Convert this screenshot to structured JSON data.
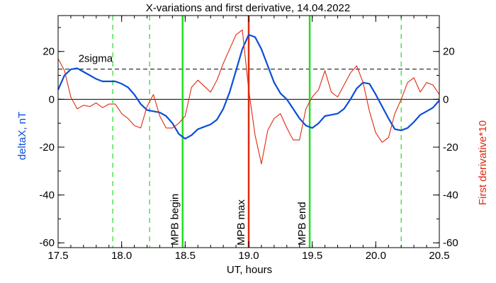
{
  "chart_data": {
    "type": "line",
    "title": "X-variations and first derivative, 14.04.2022",
    "xlabel": "UT, hours",
    "ylabel_left": "deltaX, nT",
    "ylabel_right": "First derivative*10",
    "xlim": [
      17.5,
      20.5
    ],
    "ylim": [
      -62,
      35
    ],
    "x_ticks": [
      17.5,
      18.0,
      18.5,
      19.0,
      19.5,
      20.0,
      20.5
    ],
    "x_tick_labels": [
      "17.5",
      "18.0",
      "18.5",
      "19.0",
      "19.5",
      "20.0",
      "20.5"
    ],
    "y_ticks": [
      20,
      0,
      -20,
      -40,
      -60
    ],
    "y_tick_labels": [
      "20",
      "0",
      "-20",
      "-40",
      "-60"
    ],
    "grid": false,
    "colors": {
      "deltaX": "#0a4ed8",
      "derivative": "#dd2a10",
      "mpb_border": "#22dd22",
      "mpb_max": "#dd2a10",
      "axis": "#000000"
    },
    "series": [
      {
        "id": "deltaX",
        "x": [
          17.5,
          17.55,
          17.6,
          17.65,
          17.7,
          17.75,
          17.8,
          17.85,
          17.9,
          17.95,
          18.0,
          18.05,
          18.1,
          18.15,
          18.2,
          18.25,
          18.3,
          18.35,
          18.4,
          18.45,
          18.5,
          18.55,
          18.6,
          18.65,
          18.7,
          18.75,
          18.8,
          18.85,
          18.9,
          18.95,
          19.0,
          19.05,
          19.1,
          19.15,
          19.2,
          19.25,
          19.3,
          19.35,
          19.4,
          19.45,
          19.5,
          19.55,
          19.6,
          19.65,
          19.7,
          19.75,
          19.8,
          19.85,
          19.9,
          19.95,
          20.0,
          20.05,
          20.1,
          20.15,
          20.2,
          20.25,
          20.3,
          20.35,
          20.4,
          20.45,
          20.5
        ],
        "values": [
          4,
          10,
          12.5,
          13,
          11.5,
          10,
          8.5,
          7.5,
          7.5,
          7.5,
          6.5,
          5,
          2,
          -2,
          -4.5,
          -5,
          -5.5,
          -7,
          -10,
          -14.5,
          -16.5,
          -15,
          -12.5,
          -11.5,
          -10.5,
          -8.5,
          -4,
          3,
          12,
          21,
          27,
          26,
          21,
          14,
          7,
          2.5,
          0,
          -4,
          -8,
          -11,
          -12,
          -10,
          -7,
          -6.5,
          -6,
          -4,
          0,
          4.5,
          7,
          6.5,
          2,
          -3,
          -8,
          -12.5,
          -13,
          -12,
          -9.5,
          -6.5,
          -5,
          -3.5,
          -0.5
        ]
      },
      {
        "id": "derivative",
        "x": [
          17.5,
          17.55,
          17.6,
          17.65,
          17.7,
          17.75,
          17.8,
          17.85,
          17.9,
          17.95,
          18.0,
          18.05,
          18.1,
          18.15,
          18.2,
          18.25,
          18.3,
          18.35,
          18.4,
          18.45,
          18.5,
          18.55,
          18.6,
          18.65,
          18.7,
          18.75,
          18.8,
          18.85,
          18.9,
          18.95,
          19.0,
          19.05,
          19.1,
          19.15,
          19.2,
          19.25,
          19.3,
          19.35,
          19.4,
          19.45,
          19.5,
          19.55,
          19.6,
          19.65,
          19.7,
          19.75,
          19.8,
          19.85,
          19.9,
          19.95,
          20.0,
          20.05,
          20.1,
          20.15,
          20.2,
          20.25,
          20.3,
          20.35,
          20.4,
          20.45,
          20.5
        ],
        "values": [
          17,
          12,
          1,
          -4,
          -2.5,
          -3,
          -1.5,
          -3.5,
          -2,
          -2,
          -6,
          -8,
          -11,
          -12,
          -3,
          2,
          -7,
          -12,
          -12,
          -10,
          -7,
          5,
          8,
          5.5,
          3,
          8,
          15,
          21,
          27,
          29,
          4,
          -15,
          -27,
          -13,
          -8,
          -6,
          -12,
          -17,
          -17,
          -4,
          1,
          4,
          12,
          3,
          1,
          6,
          11,
          14,
          7,
          -5,
          -14,
          -18,
          -16,
          -6,
          0,
          7,
          9,
          3,
          7,
          6,
          2
        ]
      }
    ],
    "threshold": {
      "label": "2sigma",
      "value": 12.6
    },
    "zero_line": 0,
    "vertical_lines": [
      {
        "x": 17.93,
        "style": "dashed",
        "color": "#22dd22",
        "label": ""
      },
      {
        "x": 18.22,
        "style": "dashed",
        "color": "#22dd22",
        "label": ""
      },
      {
        "x": 18.48,
        "style": "solid",
        "color": "#22dd22",
        "label": "MPB begin"
      },
      {
        "x": 19.0,
        "style": "solid",
        "color": "#dd2a10",
        "label": "MPB max"
      },
      {
        "x": 19.48,
        "style": "solid",
        "color": "#22dd22",
        "label": "MPB end"
      },
      {
        "x": 20.2,
        "style": "dashed",
        "color": "#22dd22",
        "label": ""
      }
    ]
  }
}
